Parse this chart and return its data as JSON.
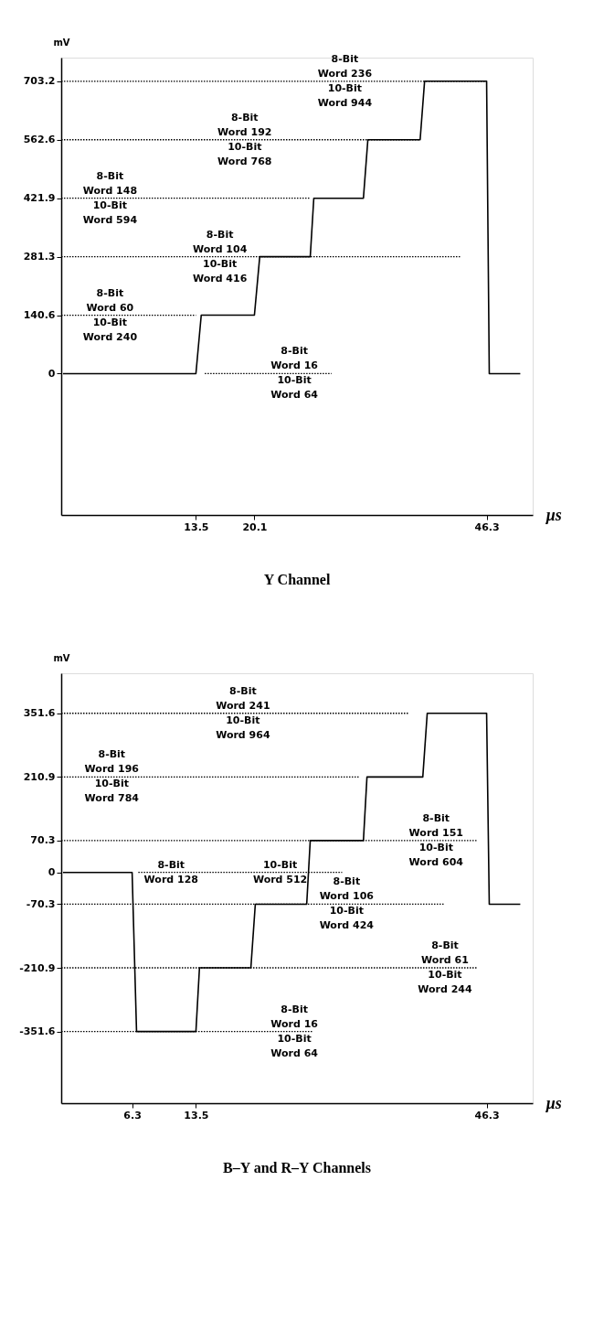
{
  "chart_data": [
    {
      "type": "line",
      "title": "Y Channel",
      "xlabel": "µs",
      "ylabel": "mV",
      "xlim": [
        -1.7,
        51.5
      ],
      "ylim": [
        -340,
        760
      ],
      "xticks": [
        13.5,
        20.1,
        46.3
      ],
      "yticks": [
        0,
        140.6,
        281.3,
        421.9,
        562.6,
        703.2
      ],
      "grid": false,
      "series": [
        {
          "color": "#000000",
          "line_style": "solid",
          "x": [
            -1.5,
            13.5,
            14.1,
            20.1,
            20.7,
            26.4,
            26.8,
            32.4,
            32.9,
            38.8,
            39.3,
            46.3,
            46.6,
            50.1
          ],
          "values": [
            0,
            0,
            140.6,
            140.6,
            281.3,
            281.3,
            421.9,
            421.9,
            562.6,
            562.6,
            703.2,
            703.2,
            0,
            0
          ]
        },
        {
          "color": "#000000",
          "line_style": "dotted",
          "x": [
            -1.7,
            46.3
          ],
          "values": [
            703.2,
            703.2
          ]
        },
        {
          "color": "#000000",
          "line_style": "dotted",
          "x": [
            -1.7,
            38.8
          ],
          "values": [
            562.6,
            562.6
          ]
        },
        {
          "color": "#000000",
          "line_style": "dotted",
          "x": [
            -1.7,
            26.4
          ],
          "values": [
            421.9,
            421.9
          ]
        },
        {
          "color": "#000000",
          "line_style": "dotted",
          "x": [
            -1.7,
            43.3
          ],
          "values": [
            281.3,
            281.3
          ]
        },
        {
          "color": "#000000",
          "line_style": "dotted",
          "x": [
            -1.7,
            13.5
          ],
          "values": [
            140.6,
            140.6
          ]
        },
        {
          "color": "#000000",
          "line_style": "dotted",
          "x": [
            14.5,
            28.8
          ],
          "values": [
            0,
            0
          ]
        }
      ],
      "annotations": [
        {
          "text": "8-Bit\nWord 236\n10-Bit\nWord 944",
          "x": 30.3,
          "y": 703.2
        },
        {
          "text": "8-Bit\nWord 192\n10-Bit\nWord 768",
          "x": 19.0,
          "y": 562.6
        },
        {
          "text": "8-Bit\nWord 148\n10-Bit\nWord 594",
          "x": 3.8,
          "y": 421.9
        },
        {
          "text": "8-Bit\nWord 104\n10-Bit\nWord 416",
          "x": 16.2,
          "y": 281.3
        },
        {
          "text": "8-Bit\nWord 60\n10-Bit\nWord 240",
          "x": 3.8,
          "y": 140.6
        },
        {
          "text": "8-Bit\nWord 16\n10-Bit\nWord 64",
          "x": 24.6,
          "y": 0
        }
      ]
    },
    {
      "type": "line",
      "title": "B–Y and R–Y Channels",
      "xlabel": "µs",
      "ylabel": "mV",
      "xlim": [
        -1.7,
        51.5
      ],
      "ylim": [
        -510,
        440
      ],
      "xticks": [
        6.3,
        13.5,
        46.3
      ],
      "yticks": [
        351.6,
        210.9,
        70.3,
        0,
        -70.3,
        -210.9,
        -351.6
      ],
      "grid": false,
      "series": [
        {
          "color": "#000000",
          "line_style": "solid",
          "x": [
            -1.5,
            6.3,
            6.8,
            13.5,
            13.9,
            19.7,
            20.2,
            26.0,
            26.4,
            32.4,
            32.8,
            39.1,
            39.6,
            46.3,
            46.6,
            50.1
          ],
          "values": [
            0,
            0,
            -351.6,
            -351.6,
            -210.9,
            -210.9,
            -70.3,
            -70.3,
            70.3,
            70.3,
            210.9,
            210.9,
            351.6,
            351.6,
            -70.3,
            -70.3
          ]
        },
        {
          "color": "#000000",
          "line_style": "dotted",
          "x": [
            -1.7,
            37.5
          ],
          "values": [
            351.6,
            351.6
          ]
        },
        {
          "color": "#000000",
          "line_style": "dotted",
          "x": [
            -1.7,
            31.9
          ],
          "values": [
            210.9,
            210.9
          ]
        },
        {
          "color": "#000000",
          "line_style": "dotted",
          "x": [
            -1.7,
            45.3
          ],
          "values": [
            70.3,
            70.3
          ]
        },
        {
          "color": "#000000",
          "line_style": "dotted",
          "x": [
            7.0,
            30.0
          ],
          "values": [
            0,
            0
          ]
        },
        {
          "color": "#000000",
          "line_style": "dotted",
          "x": [
            -1.7,
            41.6
          ],
          "values": [
            -70.3,
            -70.3
          ]
        },
        {
          "color": "#000000",
          "line_style": "dotted",
          "x": [
            -1.7,
            45.3
          ],
          "values": [
            -210.9,
            -210.9
          ]
        },
        {
          "color": "#000000",
          "line_style": "dotted",
          "x": [
            -1.7,
            26.7
          ],
          "values": [
            -351.6,
            -351.6
          ]
        }
      ],
      "annotations": [
        {
          "text": "8-Bit\nWord 241\n10-Bit\nWord 964",
          "x": 18.8,
          "y": 351.6
        },
        {
          "text": "8-Bit\nWord 196\n10-Bit\nWord 784",
          "x": 4.0,
          "y": 210.9
        },
        {
          "text": "8-Bit\nWord 151\n10-Bit\nWord 604",
          "x": 40.6,
          "y": 70.3
        },
        {
          "text": "8-Bit\nWord 128",
          "x": 10.7,
          "y": 0
        },
        {
          "text": "10-Bit\nWord 512",
          "x": 23.0,
          "y": 0
        },
        {
          "text": "8-Bit\nWord 106\n10-Bit\nWord 424",
          "x": 30.5,
          "y": -70.3
        },
        {
          "text": "8-Bit\nWord 61\n10-Bit\nWord 244",
          "x": 41.6,
          "y": -210.9
        },
        {
          "text": "8-Bit\nWord 16\n10-Bit\nWord 64",
          "x": 24.6,
          "y": -351.6
        }
      ]
    }
  ]
}
